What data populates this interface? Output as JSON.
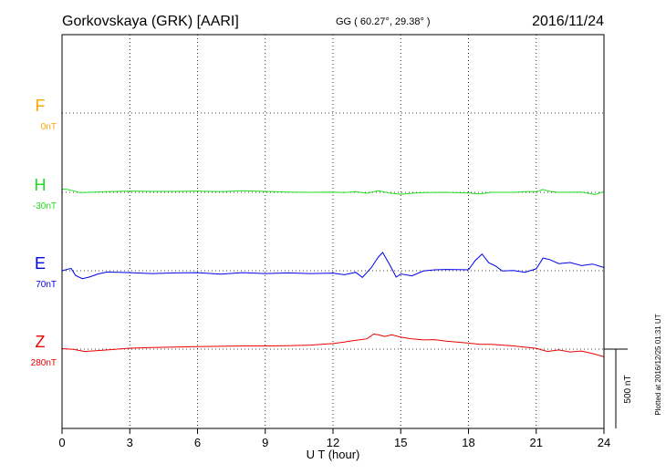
{
  "header": {
    "station": "Gorkovskaya (GRK)  [AARI]",
    "coords": "GG ( 60.27°,  29.38° )",
    "date": "2016/11/24"
  },
  "footer": {
    "xlabel": "U T (hour)",
    "plotted": "Plotted at 2016/12/25 01:31  UT",
    "scale_label": "500 nT"
  },
  "chart_data": {
    "type": "line",
    "xlabel": "U T (hour)",
    "xlim": [
      0,
      24
    ],
    "x_ticks": [
      0,
      3,
      6,
      9,
      12,
      15,
      18,
      21,
      24
    ],
    "grid": true,
    "scale_bar_nT": 500,
    "series": [
      {
        "name": "F",
        "baseline_label": "0nT",
        "color": "#ffa500",
        "baseline_offset": 0,
        "x": [],
        "values": []
      },
      {
        "name": "H",
        "baseline_label": "-30nT",
        "color": "#22dd22",
        "baseline_offset": -30,
        "x": [
          0,
          0.25,
          0.5,
          0.8,
          1.2,
          2,
          3,
          4,
          5,
          6,
          7,
          8,
          9,
          10,
          11,
          12,
          12.5,
          13,
          13.5,
          14,
          14.5,
          15,
          15.5,
          16,
          17,
          18,
          18.5,
          19,
          20,
          20.5,
          21,
          21.3,
          21.6,
          22,
          23,
          23.6,
          24
        ],
        "values": [
          -10,
          -12,
          -20,
          -32,
          -30,
          -26,
          -22,
          -24,
          -24,
          -22,
          -26,
          -20,
          -24,
          -28,
          -30,
          -28,
          -32,
          -26,
          -36,
          -20,
          -34,
          -42,
          -36,
          -32,
          -30,
          -34,
          -40,
          -30,
          -30,
          -26,
          -26,
          -12,
          -24,
          -30,
          -28,
          -44,
          -26
        ]
      },
      {
        "name": "E",
        "baseline_label": "70nT",
        "color": "#0000ee",
        "baseline_offset": 70,
        "x": [
          0,
          0.4,
          0.6,
          0.9,
          1.2,
          1.6,
          2,
          3,
          4,
          5,
          6,
          7,
          8,
          9,
          10,
          11,
          12,
          12.5,
          13,
          13.3,
          13.7,
          14,
          14.2,
          14.5,
          14.8,
          15,
          15.5,
          16,
          16.5,
          17,
          18,
          18.3,
          18.6,
          18.9,
          19.2,
          19.5,
          20,
          20.5,
          21,
          21.3,
          21.6,
          22,
          22.5,
          23,
          23.5,
          24
        ],
        "values": [
          70,
          85,
          40,
          20,
          30,
          50,
          62,
          58,
          52,
          56,
          58,
          48,
          58,
          52,
          56,
          52,
          55,
          45,
          60,
          28,
          90,
          155,
          185,
          110,
          30,
          50,
          38,
          68,
          76,
          78,
          76,
          135,
          175,
          120,
          100,
          68,
          72,
          60,
          82,
          150,
          140,
          115,
          122,
          102,
          112,
          90
        ]
      },
      {
        "name": "Z",
        "baseline_label": "280nT",
        "color": "#ee0000",
        "baseline_offset": 280,
        "x": [
          0,
          0.5,
          1,
          2,
          3,
          4,
          5,
          6,
          7,
          8,
          9,
          10,
          11,
          12,
          12.5,
          13,
          13.5,
          13.8,
          14,
          14.3,
          14.6,
          15,
          15.5,
          16,
          16.5,
          17,
          17.5,
          18,
          18.5,
          19,
          19.5,
          20,
          20.5,
          21,
          21.5,
          22,
          22.5,
          23,
          23.5,
          24
        ],
        "values": [
          283,
          278,
          265,
          275,
          286,
          290,
          293,
          296,
          298,
          300,
          300,
          302,
          305,
          315,
          325,
          335,
          345,
          375,
          370,
          360,
          370,
          355,
          345,
          338,
          340,
          330,
          325,
          318,
          310,
          310,
          305,
          300,
          292,
          285,
          265,
          275,
          262,
          268,
          252,
          232
        ]
      }
    ]
  }
}
